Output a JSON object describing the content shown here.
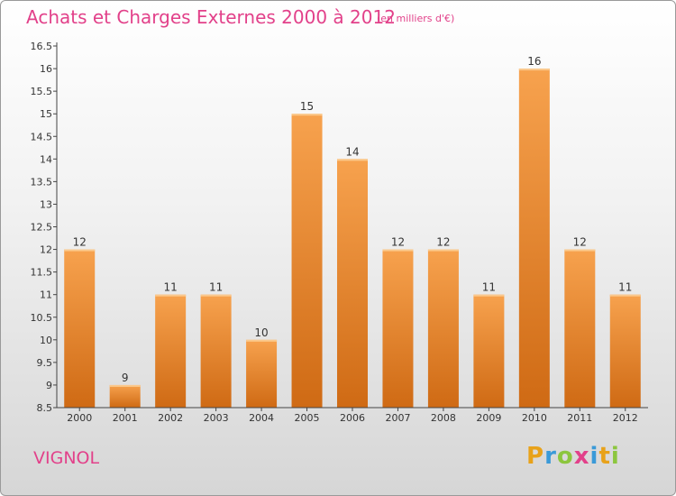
{
  "header": {
    "title": "Achats et Charges Externes 2000 à 2012",
    "unit": "(en milliers d'€)"
  },
  "footer": {
    "commune": "VIGNOL",
    "logo_text": "Proxiti"
  },
  "colors": {
    "title": "#e2418a",
    "bar_top": "#f7a24e",
    "bar_bottom": "#cf6a14",
    "axis": "#444444"
  },
  "chart_data": {
    "type": "bar",
    "categories": [
      "2000",
      "2001",
      "2002",
      "2003",
      "2004",
      "2005",
      "2006",
      "2007",
      "2008",
      "2009",
      "2010",
      "2011",
      "2012"
    ],
    "values": [
      12,
      9,
      11,
      11,
      10,
      15,
      14,
      12,
      12,
      11,
      16,
      12,
      11
    ],
    "data_labels": [
      "12",
      "9",
      "11",
      "11",
      "10",
      "15",
      "14",
      "12",
      "12",
      "11",
      "16",
      "12",
      "11"
    ],
    "ylim": [
      8.5,
      16.5
    ],
    "yticks": [
      8.5,
      9,
      9.5,
      10,
      10.5,
      11,
      11.5,
      12,
      12.5,
      13,
      13.5,
      14,
      14.5,
      15,
      15.5,
      16,
      16.5
    ],
    "ytick_labels": [
      "8.5",
      "9",
      "9.5",
      "10",
      "10.5",
      "11",
      "11.5",
      "12",
      "12.5",
      "13",
      "13.5",
      "14",
      "14.5",
      "15",
      "15.5",
      "16",
      "16.5"
    ],
    "grid": false,
    "title": "Achats et Charges Externes 2000 à 2012",
    "xlabel": "",
    "ylabel": ""
  }
}
